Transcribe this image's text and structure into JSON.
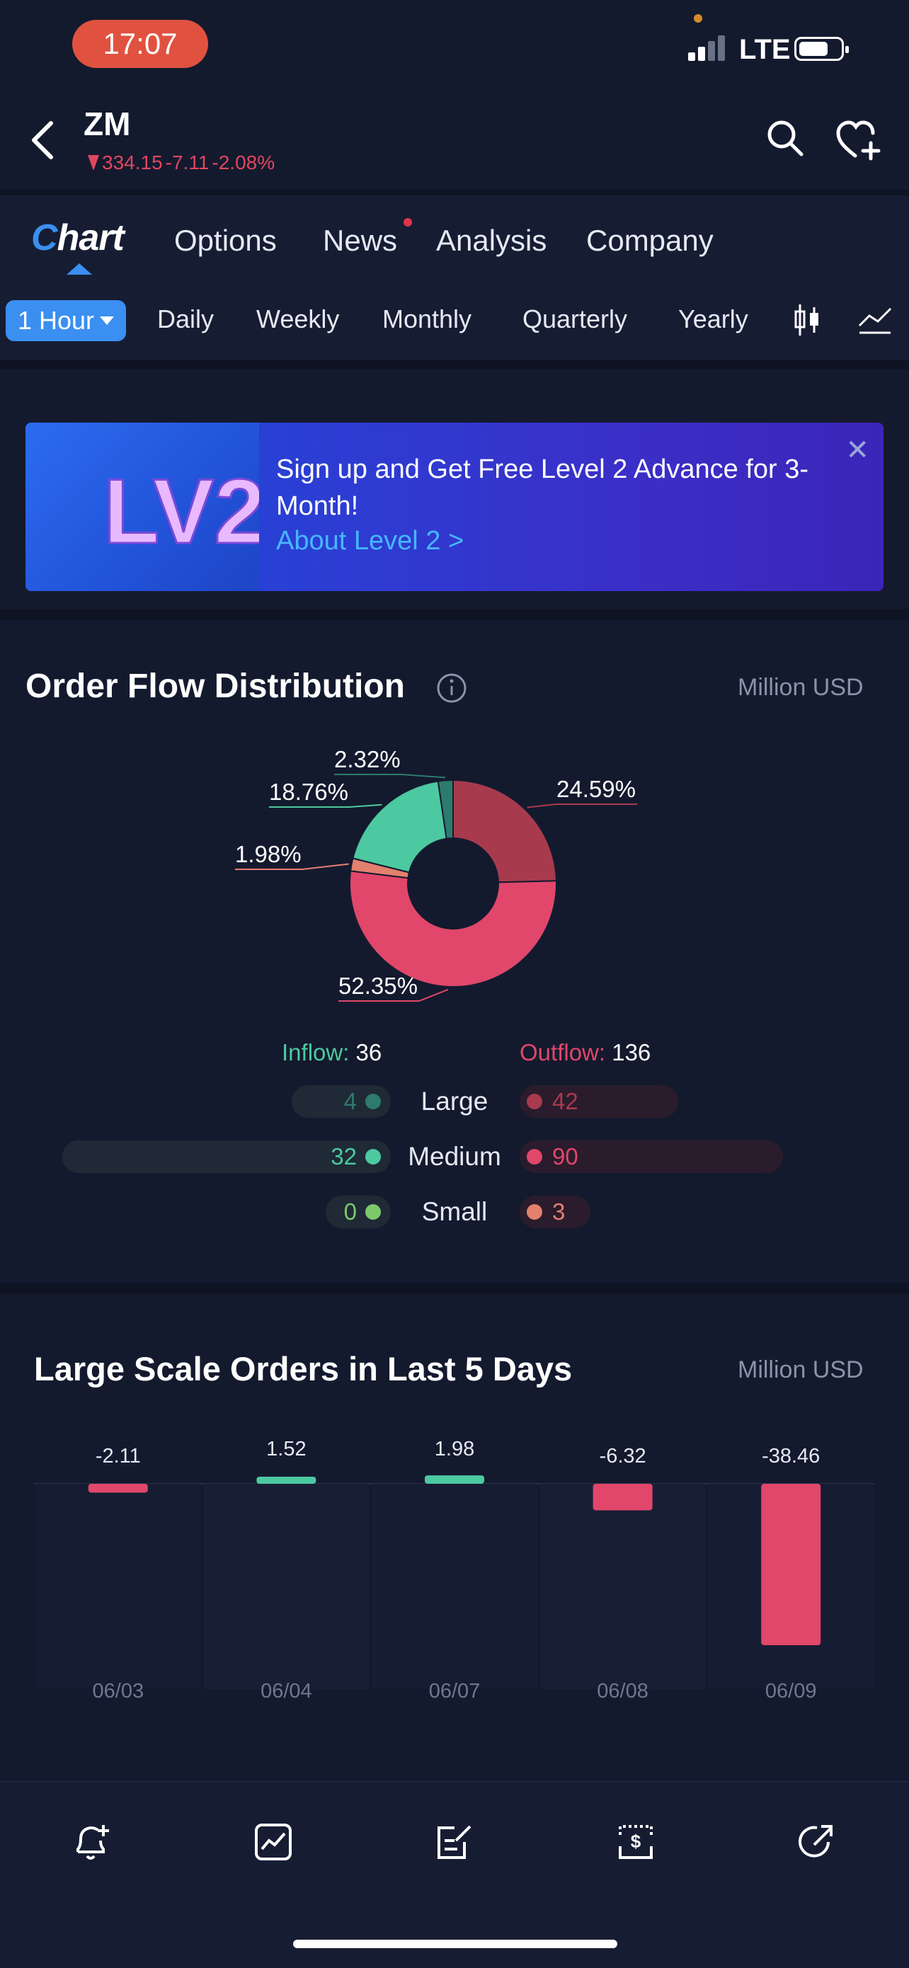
{
  "status_bar": {
    "time": "17:07",
    "network": "LTE"
  },
  "header": {
    "ticker": "ZM",
    "price": "334.15",
    "change": "-7.11",
    "change_pct": "-2.08%",
    "down_color": "#e0475f"
  },
  "tabs": [
    {
      "label": "Chart",
      "active": true
    },
    {
      "label": "Options"
    },
    {
      "label": "News",
      "has_dot": true
    },
    {
      "label": "Analysis"
    },
    {
      "label": "Company"
    }
  ],
  "periods": {
    "active": "1 Hour",
    "items": [
      "Daily",
      "Weekly",
      "Monthly",
      "Quarterly",
      "Yearly"
    ]
  },
  "banner": {
    "logo_text": "LV2",
    "text": "Sign up and Get Free Level 2 Advance for 3-Month!",
    "link": "About Level 2 >",
    "close": "✕"
  },
  "order_flow": {
    "title": "Order Flow Distribution",
    "unit": "Million USD",
    "inflow_label": "Inflow:",
    "inflow_total": "36",
    "outflow_label": "Outflow:",
    "outflow_total": "136",
    "rows": [
      {
        "label": "Large",
        "inflow": "4",
        "outflow": "42"
      },
      {
        "label": "Medium",
        "inflow": "32",
        "outflow": "90"
      },
      {
        "label": "Small",
        "inflow": "0",
        "outflow": "3"
      }
    ]
  },
  "chart_data": [
    {
      "type": "pie",
      "donut": true,
      "slices": [
        {
          "label": "24.59%",
          "value": 24.59,
          "color": "#a83a4e"
        },
        {
          "label": "52.35%",
          "value": 52.35,
          "color": "#e0476b"
        },
        {
          "label": "1.98%",
          "value": 1.98,
          "color": "#e3806e"
        },
        {
          "label": "18.76%",
          "value": 18.76,
          "color": "#4cc9a0"
        },
        {
          "label": "2.32%",
          "value": 2.32,
          "color": "#2e7a6e"
        }
      ]
    },
    {
      "type": "bar",
      "title": "Large Scale Orders in Last 5 Days",
      "unit": "Million USD",
      "categories": [
        "06/03",
        "06/04",
        "06/07",
        "06/08",
        "06/09"
      ],
      "values": [
        -2.11,
        1.52,
        1.98,
        -6.32,
        -38.46
      ],
      "value_labels": [
        "-2.11",
        "1.52",
        "1.98",
        "-6.32",
        "-38.46"
      ],
      "positive_color": "#4cc9a0",
      "negative_color": "#e0476b"
    }
  ]
}
